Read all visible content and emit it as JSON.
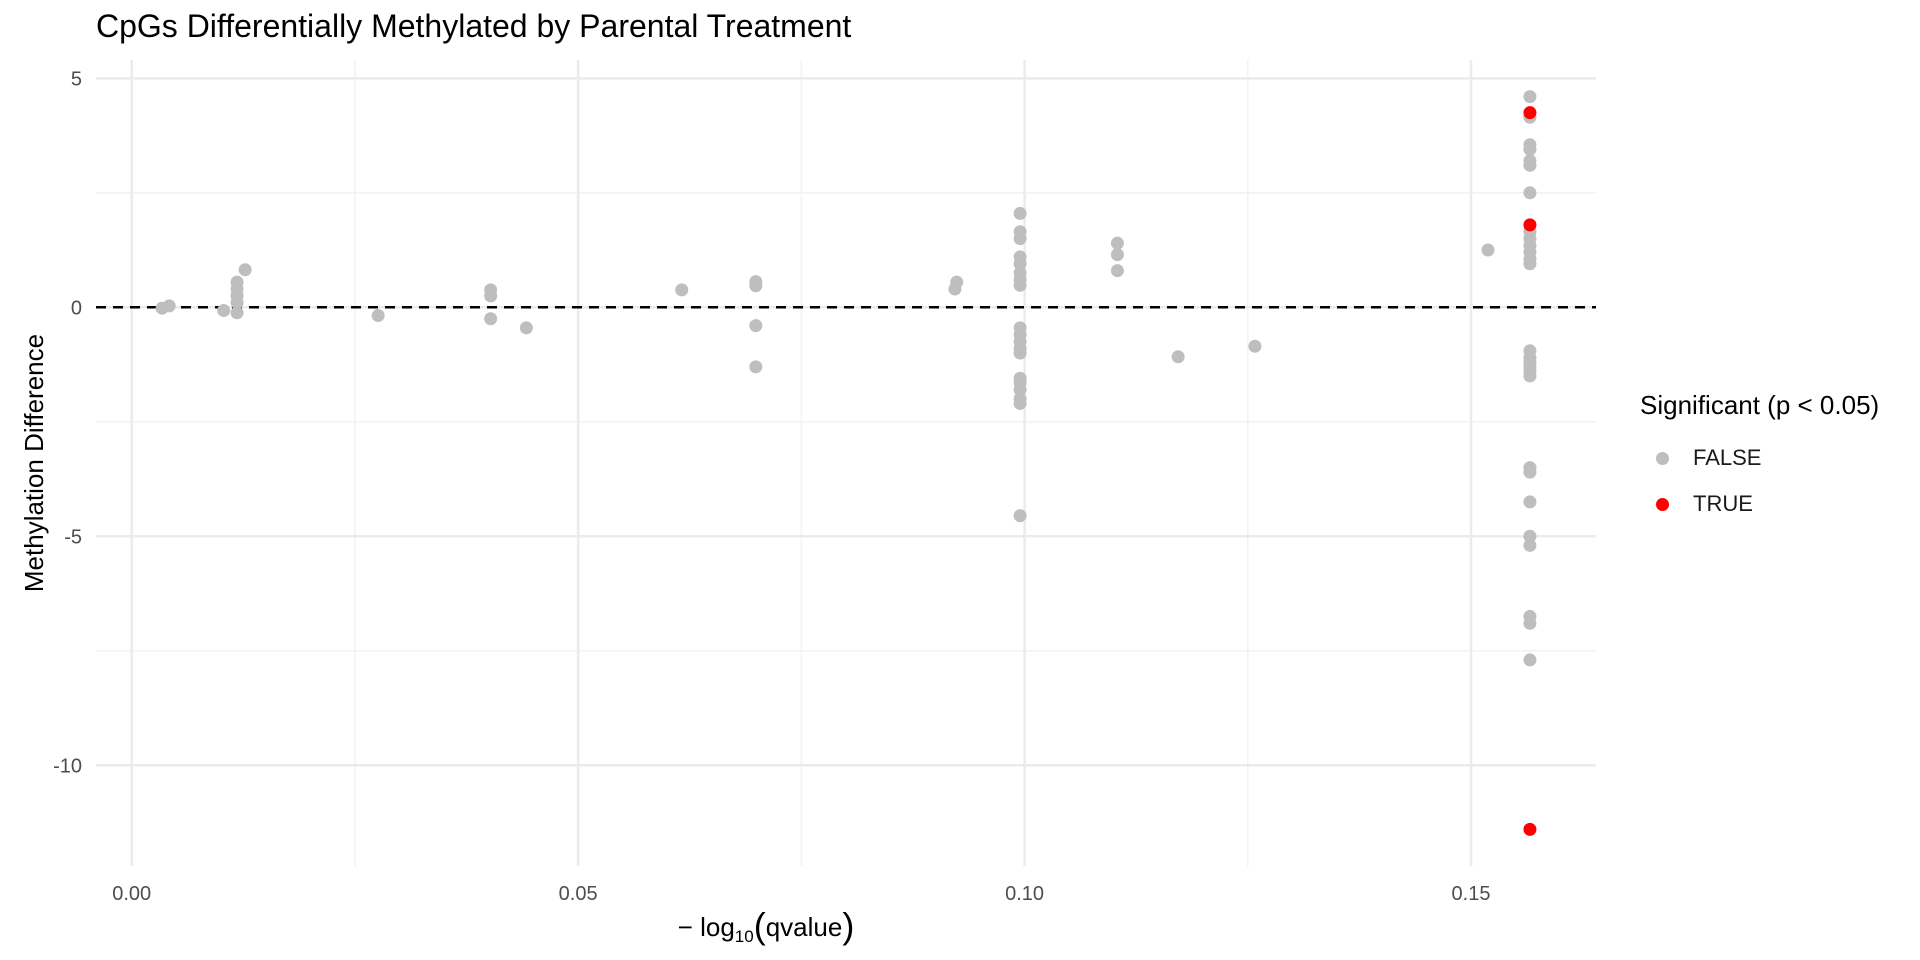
{
  "chart_data": {
    "type": "scatter",
    "title": "CpGs Differentially Methylated by Parental Treatment",
    "xlabel_prefix": "− log",
    "xlabel_sub": "10",
    "xlabel_arg": "qvalue",
    "ylabel": "Methylation Difference",
    "xlim": [
      -0.004,
      0.164
    ],
    "ylim": [
      -12.2,
      5.4
    ],
    "x_ticks": [
      0.0,
      0.05,
      0.1,
      0.15
    ],
    "x_tick_labels": [
      "0.00",
      "0.05",
      "0.10",
      "0.15"
    ],
    "y_ticks": [
      5,
      0,
      -5,
      -10
    ],
    "y_tick_labels": [
      "5",
      "0",
      "-5",
      "-10"
    ],
    "grid": true,
    "reference_line": {
      "y": 0,
      "style": "dashed"
    },
    "legend_title": "Significant (p < 0.05)",
    "legend_position": "right",
    "series": [
      {
        "name": "FALSE",
        "color": "#bebebe",
        "points": [
          [
            0.0034,
            -0.02
          ],
          [
            0.0042,
            0.03
          ],
          [
            0.0103,
            -0.07
          ],
          [
            0.0118,
            0.55
          ],
          [
            0.0118,
            0.4
          ],
          [
            0.0118,
            0.25
          ],
          [
            0.0118,
            0.1
          ],
          [
            0.0118,
            -0.12
          ],
          [
            0.0127,
            0.82
          ],
          [
            0.0276,
            -0.18
          ],
          [
            0.0402,
            0.38
          ],
          [
            0.0402,
            0.25
          ],
          [
            0.0402,
            -0.25
          ],
          [
            0.0442,
            -0.45
          ],
          [
            0.0616,
            0.38
          ],
          [
            0.0699,
            0.56
          ],
          [
            0.0699,
            0.47
          ],
          [
            0.0699,
            -0.4
          ],
          [
            0.0699,
            -1.3
          ],
          [
            0.0924,
            0.55
          ],
          [
            0.0922,
            0.4
          ],
          [
            0.0995,
            2.05
          ],
          [
            0.0995,
            1.65
          ],
          [
            0.0995,
            1.5
          ],
          [
            0.0995,
            1.1
          ],
          [
            0.0995,
            0.95
          ],
          [
            0.0995,
            0.75
          ],
          [
            0.0995,
            0.6
          ],
          [
            0.0995,
            0.48
          ],
          [
            0.0995,
            -0.45
          ],
          [
            0.0995,
            -0.6
          ],
          [
            0.0995,
            -0.75
          ],
          [
            0.0995,
            -0.9
          ],
          [
            0.0995,
            -1.0
          ],
          [
            0.0995,
            -1.55
          ],
          [
            0.0995,
            -1.65
          ],
          [
            0.0995,
            -1.8
          ],
          [
            0.0995,
            -2.0
          ],
          [
            0.0995,
            -2.1
          ],
          [
            0.0995,
            -4.55
          ],
          [
            0.1104,
            1.4
          ],
          [
            0.1104,
            1.15
          ],
          [
            0.1104,
            0.8
          ],
          [
            0.1172,
            -1.08
          ],
          [
            0.1258,
            -0.85
          ],
          [
            0.1519,
            1.25
          ],
          [
            0.1566,
            4.6
          ],
          [
            0.1566,
            4.15
          ],
          [
            0.1566,
            3.55
          ],
          [
            0.1566,
            3.45
          ],
          [
            0.1566,
            3.2
          ],
          [
            0.1566,
            3.1
          ],
          [
            0.1566,
            2.5
          ],
          [
            0.1566,
            1.65
          ],
          [
            0.1566,
            1.5
          ],
          [
            0.1566,
            1.35
          ],
          [
            0.1566,
            1.2
          ],
          [
            0.1566,
            1.05
          ],
          [
            0.1566,
            0.95
          ],
          [
            0.1566,
            -0.95
          ],
          [
            0.1566,
            -1.1
          ],
          [
            0.1566,
            -1.2
          ],
          [
            0.1566,
            -1.3
          ],
          [
            0.1566,
            -1.4
          ],
          [
            0.1566,
            -1.5
          ],
          [
            0.1566,
            -3.5
          ],
          [
            0.1566,
            -3.6
          ],
          [
            0.1566,
            -4.25
          ],
          [
            0.1566,
            -5.0
          ],
          [
            0.1566,
            -5.2
          ],
          [
            0.1566,
            -6.75
          ],
          [
            0.1566,
            -6.9
          ],
          [
            0.1566,
            -7.7
          ]
        ]
      },
      {
        "name": "TRUE",
        "color": "#ff0000",
        "points": [
          [
            0.1566,
            4.25
          ],
          [
            0.1566,
            1.8
          ],
          [
            0.1566,
            -11.4
          ]
        ]
      }
    ]
  }
}
